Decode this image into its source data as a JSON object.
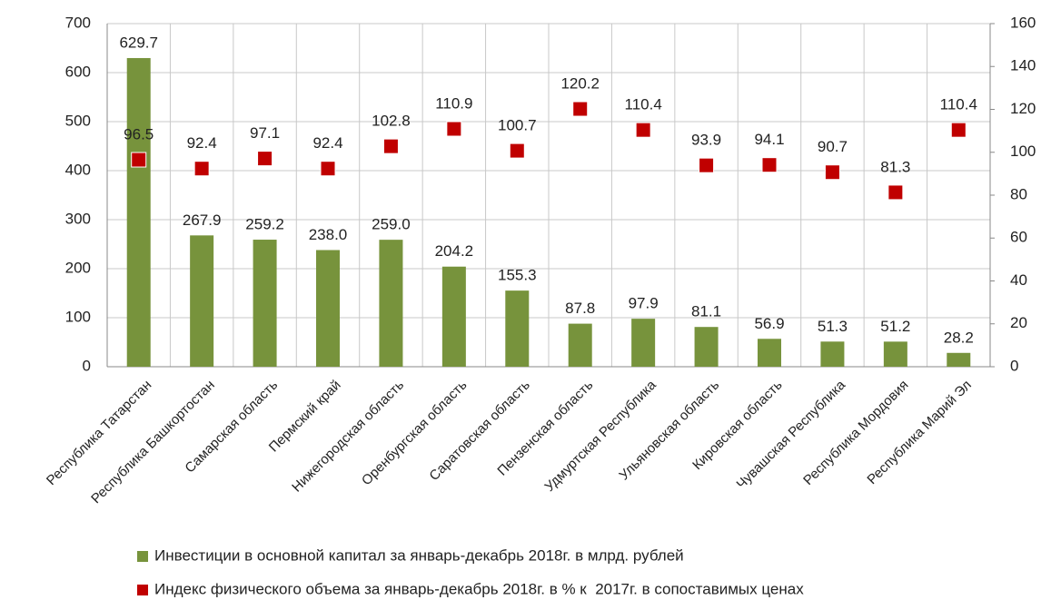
{
  "chart_data": {
    "type": "bar",
    "categories": [
      "Республика Татарстан",
      "Республика Башкортостан",
      "Самарская область",
      "Пермский край",
      "Нижегородская область",
      "Оренбургская область",
      "Саратовская область",
      "Пензенская область",
      "Удмуртская Республика",
      "Ульяновская область",
      "Кировская область",
      "Чувашская Республика",
      "Республика Мордовия",
      "Республика Марий Эл"
    ],
    "series": [
      {
        "name": "Инвестиции в основной капитал за январь-декабрь 2018г. в млрд. рублей",
        "type": "bar",
        "color": "#77933c",
        "values": [
          629.7,
          267.9,
          259.2,
          238.0,
          259.0,
          204.2,
          155.3,
          87.8,
          97.9,
          81.1,
          56.9,
          51.3,
          51.2,
          28.2
        ],
        "value_labels": [
          "629.7",
          "267.9",
          "259.2",
          "238.0",
          "259.0",
          "204.2",
          "155.3",
          "87.8",
          "97.9",
          "81.1",
          "56.9",
          "51.3",
          "51.2",
          "28.2"
        ]
      },
      {
        "name": "Индекс физического объема за январь-декабрь 2018г. в % к  2017г. в сопоставимых ценах",
        "type": "scatter",
        "axis": "y2",
        "color": "#c00000",
        "values": [
          96.5,
          92.4,
          97.1,
          92.4,
          102.8,
          110.9,
          100.7,
          120.2,
          110.4,
          93.9,
          94.1,
          90.7,
          81.3,
          110.4
        ]
      }
    ],
    "ylim": [
      0,
      700
    ],
    "yticks": [
      0,
      100,
      200,
      300,
      400,
      500,
      600,
      700
    ],
    "y2lim": [
      0,
      160
    ],
    "y2ticks": [
      0,
      20,
      40,
      60,
      80,
      100,
      120,
      140,
      160
    ],
    "grid": true
  }
}
